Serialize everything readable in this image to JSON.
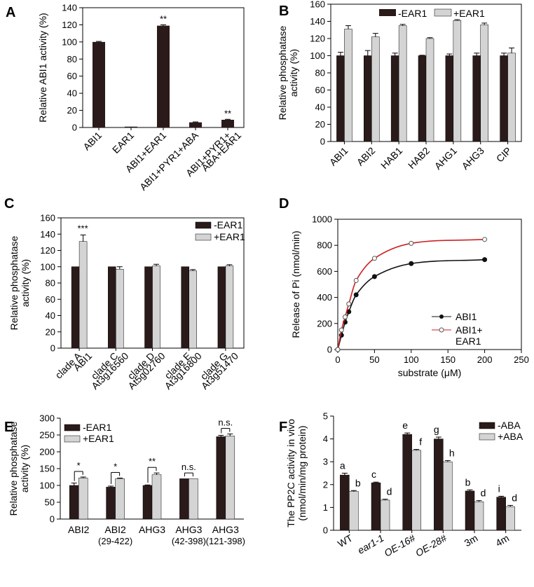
{
  "chart_data": [
    {
      "panel": "A",
      "type": "bar",
      "ylabel": "Relative ABI1 activity (%)",
      "ylim": [
        0,
        140
      ],
      "yticks": [
        0,
        20,
        40,
        60,
        80,
        100,
        120,
        140
      ],
      "categories": [
        "ABI1",
        "EAR1",
        "ABI1+EAR1",
        "ABI1+PYR1+ABA",
        "ABI1+PYR1+ ABA+EAR1"
      ],
      "category_lines": [
        [
          "ABI1"
        ],
        [
          "EAR1"
        ],
        [
          "ABI1+EAR1"
        ],
        [
          "ABI1+PYR1+ABA"
        ],
        [
          "ABI1+PYR1+",
          "ABA+EAR1"
        ]
      ],
      "values": [
        100,
        1,
        119,
        6,
        9
      ],
      "errors": [
        0.6,
        0.4,
        1.0,
        0.5,
        0.6
      ],
      "annotations": [
        "",
        "",
        "**",
        "",
        "**"
      ],
      "color": "#2b1a1a"
    },
    {
      "panel": "B",
      "type": "bar",
      "ylabel_lines": [
        "Relative phosphatase",
        "activity (%)"
      ],
      "ylim": [
        0,
        160
      ],
      "yticks": [
        0,
        20,
        40,
        60,
        80,
        100,
        120,
        140,
        160
      ],
      "categories": [
        "ABI1",
        "ABI2",
        "HAB1",
        "HAB2",
        "AHG1",
        "AHG3",
        "CIP"
      ],
      "series": [
        {
          "name": "-EAR1",
          "color": "#2b1a1a",
          "values": [
            100,
            100,
            100,
            100,
            100,
            100,
            100
          ],
          "errors": [
            4,
            6,
            3,
            0.5,
            2,
            3,
            3
          ]
        },
        {
          "name": "+EAR1",
          "color": "#d4d4d4",
          "values": [
            131,
            122,
            135,
            120,
            141,
            136,
            103
          ],
          "errors": [
            4,
            4,
            1.5,
            1,
            1,
            2,
            6
          ]
        }
      ],
      "legend": "top"
    },
    {
      "panel": "C",
      "type": "bar",
      "ylabel_lines": [
        "Relative phosphatase",
        "activity (%)"
      ],
      "ylim": [
        0,
        160
      ],
      "yticks": [
        0,
        20,
        40,
        60,
        80,
        100,
        120,
        140,
        160
      ],
      "categories": [
        "clade A ABI1",
        "clade C At3g16560",
        "clade D At5g02760",
        "clade E At3g16800",
        "clade G At3g51470"
      ],
      "category_lines": [
        [
          "clade A",
          "ABI1"
        ],
        [
          "clade C",
          "At3g16560"
        ],
        [
          "clade D",
          "At5g02760"
        ],
        [
          "clade E",
          "At3g16800"
        ],
        [
          "clade G",
          "At3g51470"
        ]
      ],
      "series": [
        {
          "name": "-EAR1",
          "color": "#2b1a1a",
          "values": [
            100,
            100,
            100,
            100,
            100
          ],
          "errors": [
            0,
            0,
            0,
            0,
            0
          ]
        },
        {
          "name": "+EAR1",
          "color": "#d4d4d4",
          "values": [
            131,
            97,
            101,
            95,
            101
          ],
          "errors": [
            8,
            3,
            2,
            1.5,
            1.5
          ]
        }
      ],
      "annotations": [
        "***",
        "",
        "",
        "",
        ""
      ],
      "legend": "top-right"
    },
    {
      "panel": "D",
      "type": "line",
      "xlabel": "substrate (μM)",
      "ylabel": "Release of Pi (nmol/min)",
      "ylabel_sub": "i",
      "xlim": [
        0,
        250
      ],
      "ylim": [
        0,
        1000
      ],
      "xticks": [
        0,
        50,
        100,
        150,
        200,
        250
      ],
      "yticks": [
        0,
        200,
        400,
        600,
        800,
        1000
      ],
      "series": [
        {
          "name": "ABI1",
          "color": "#111111",
          "marker": "filled",
          "x": [
            0,
            5,
            10,
            15,
            25,
            50,
            100,
            200
          ],
          "y": [
            0,
            110,
            210,
            290,
            420,
            560,
            660,
            690
          ]
        },
        {
          "name": "ABI1+ EAR1",
          "name_lines": [
            "ABI1+",
            "EAR1"
          ],
          "color": "#cc2222",
          "marker": "open",
          "x": [
            0,
            5,
            10,
            15,
            25,
            50,
            100,
            200
          ],
          "y": [
            0,
            150,
            250,
            350,
            530,
            700,
            815,
            845
          ]
        }
      ],
      "legend": "bottom-right"
    },
    {
      "panel": "E",
      "type": "bar",
      "ylabel_lines": [
        "Relative phosphatase",
        "activity (%)"
      ],
      "ylim": [
        0,
        300
      ],
      "yticks": [
        0,
        50,
        100,
        150,
        200,
        250,
        300
      ],
      "categories": [
        "ABI2",
        "ABI2 (29-422)",
        "AHG3",
        "AHG3 (42-398)",
        "AHG3 (121-398)"
      ],
      "category_lines": [
        [
          "ABI2",
          ""
        ],
        [
          "ABI2",
          "(29-422)"
        ],
        [
          "AHG3",
          ""
        ],
        [
          "AHG3",
          "(42-398)"
        ],
        [
          "AHG3",
          "(121-398)"
        ]
      ],
      "series": [
        {
          "name": "-EAR1",
          "color": "#2b1a1a",
          "values": [
            100,
            95,
            100,
            120,
            245
          ],
          "errors": [
            7,
            3,
            1.5,
            0.5,
            4
          ]
        },
        {
          "name": "+EAR1",
          "color": "#d4d4d4",
          "values": [
            122,
            120,
            132,
            120,
            247
          ],
          "errors": [
            3,
            2,
            5,
            0.5,
            6
          ]
        }
      ],
      "annotations": [
        "*",
        "*",
        "**",
        "n.s.",
        "n.s."
      ],
      "legend": "top-left"
    },
    {
      "panel": "F",
      "type": "bar",
      "ylabel_lines": [
        "The PP2C activity in vivo",
        "(nmol/min/mg protein)"
      ],
      "ylim": [
        0,
        5
      ],
      "yticks": [
        0,
        1,
        2,
        3,
        4,
        5
      ],
      "categories": [
        "WT",
        "ear1-1",
        "OE-16#",
        "OE-28#",
        "3m",
        "4m"
      ],
      "series": [
        {
          "name": "-ABA",
          "color": "#2b1a1a",
          "values": [
            2.42,
            2.08,
            4.2,
            4.0,
            1.72,
            1.45
          ],
          "errors": [
            0.08,
            0.03,
            0.06,
            0.08,
            0.05,
            0.04
          ],
          "letters": [
            "a",
            "c",
            "e",
            "g",
            "b",
            "i"
          ]
        },
        {
          "name": "+ABA",
          "color": "#d4d4d4",
          "values": [
            1.7,
            1.32,
            3.5,
            3.0,
            1.25,
            1.03
          ],
          "errors": [
            0.04,
            0.04,
            0.04,
            0.05,
            0.05,
            0.06
          ],
          "letters": [
            "b",
            "d",
            "f",
            "h",
            "d",
            "d"
          ]
        }
      ],
      "legend": "top-right"
    }
  ]
}
